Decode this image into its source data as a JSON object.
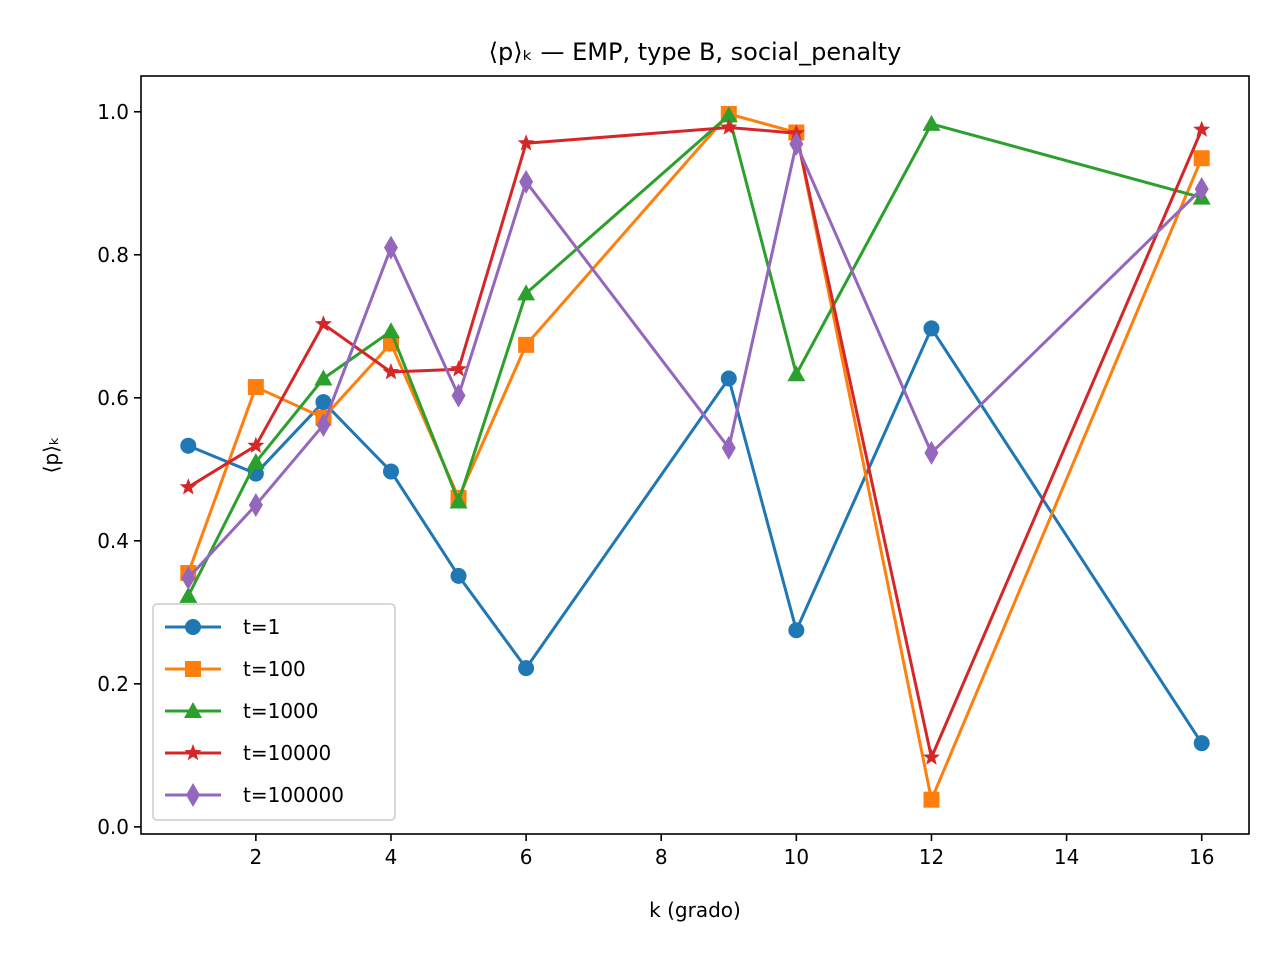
{
  "chart_data": {
    "type": "line",
    "title": "⟨p⟩ₖ — EMP, type B, social_penalty",
    "xlabel": "k (grado)",
    "ylabel": "⟨p⟩ₖ",
    "xlim": [
      0.3,
      16.7
    ],
    "ylim": [
      -0.01,
      1.05
    ],
    "xticks": [
      2,
      4,
      6,
      8,
      10,
      12,
      14,
      16
    ],
    "yticks": [
      0.0,
      0.2,
      0.4,
      0.6,
      0.8,
      1.0
    ],
    "x": [
      1,
      2,
      3,
      4,
      5,
      6,
      9,
      10,
      12,
      16
    ],
    "grid": false,
    "legend_position": "lower-left",
    "series": [
      {
        "name": "t=1",
        "color": "#1f77b4",
        "marker": "circle",
        "values": [
          0.533,
          0.494,
          0.594,
          0.497,
          0.351,
          0.222,
          0.627,
          0.275,
          0.697,
          0.117
        ]
      },
      {
        "name": "t=100",
        "color": "#ff7f0e",
        "marker": "square",
        "values": [
          0.355,
          0.615,
          0.572,
          0.676,
          0.46,
          0.674,
          0.997,
          0.971,
          0.038,
          0.935
        ]
      },
      {
        "name": "t=1000",
        "color": "#2ca02c",
        "marker": "triangle",
        "values": [
          0.323,
          0.51,
          0.627,
          0.693,
          0.455,
          0.746,
          0.995,
          0.633,
          0.983,
          0.88
        ]
      },
      {
        "name": "t=10000",
        "color": "#d62728",
        "marker": "star",
        "values": [
          0.475,
          0.533,
          0.703,
          0.636,
          0.64,
          0.956,
          0.978,
          0.97,
          0.097,
          0.975
        ]
      },
      {
        "name": "t=100000",
        "color": "#9467bd",
        "marker": "thin_diamond",
        "values": [
          0.348,
          0.45,
          0.562,
          0.81,
          0.603,
          0.902,
          0.53,
          0.955,
          0.523,
          0.892
        ]
      }
    ]
  }
}
